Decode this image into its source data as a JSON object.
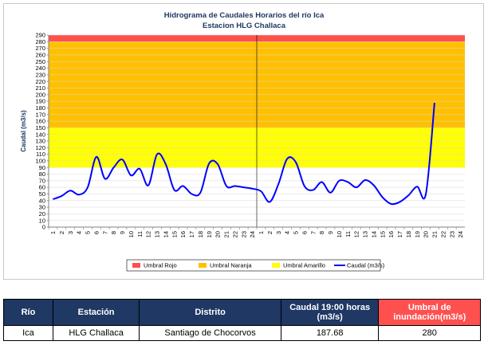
{
  "chart_data": {
    "type": "line",
    "title": "Hidrograma de Caudales Horarios del río Ica",
    "subtitle": "Estacion HLG Challaca",
    "ylabel": "Caudal  (m3/s)",
    "xlabel": "",
    "ylim": [
      0,
      290
    ],
    "yticks": [
      0,
      10,
      20,
      30,
      40,
      50,
      60,
      70,
      80,
      90,
      100,
      110,
      120,
      130,
      140,
      150,
      160,
      170,
      180,
      190,
      200,
      210,
      220,
      230,
      240,
      250,
      260,
      270,
      280,
      290
    ],
    "xtick_labels": [
      "1",
      "2",
      "3",
      "4",
      "5",
      "6",
      "7",
      "8",
      "9",
      "10",
      "11",
      "12",
      "13",
      "14",
      "15",
      "16",
      "17",
      "18",
      "19",
      "20",
      "21",
      "22",
      "23",
      "24",
      "1",
      "2",
      "3",
      "4",
      "5",
      "6",
      "7",
      "8",
      "9",
      "10",
      "11",
      "12",
      "13",
      "14",
      "15",
      "16",
      "17",
      "18",
      "19",
      "20",
      "21",
      "22",
      "23",
      "24"
    ],
    "day_divider_after_index": 23,
    "threshold_bands": [
      {
        "name": "Umbral Amarillo",
        "from": 90,
        "to": 150,
        "color": "#ffff00"
      },
      {
        "name": "Umbral Naranja",
        "from": 150,
        "to": 280,
        "color": "#ffc000"
      },
      {
        "name": "Umbral Rojo",
        "from": 280,
        "to": 290,
        "color": "#ff5050"
      }
    ],
    "series": [
      {
        "name": "Caudal (m3/s)",
        "color": "#0000ff",
        "points": [
          [
            0,
            42
          ],
          [
            1,
            47
          ],
          [
            2,
            55
          ],
          [
            3,
            49
          ],
          [
            4,
            60
          ],
          [
            5,
            106
          ],
          [
            6,
            73
          ],
          [
            7,
            90
          ],
          [
            8,
            102
          ],
          [
            9,
            78
          ],
          [
            10,
            88
          ],
          [
            11,
            63
          ],
          [
            12,
            110
          ],
          [
            13,
            95
          ],
          [
            14,
            56
          ],
          [
            15,
            62
          ],
          [
            16,
            50
          ],
          [
            17,
            52
          ],
          [
            18,
            96
          ],
          [
            19,
            95
          ],
          [
            20,
            62
          ],
          [
            21,
            62
          ],
          [
            22,
            60
          ],
          [
            23,
            58
          ],
          [
            24,
            54
          ],
          [
            25,
            38
          ],
          [
            26,
            65
          ],
          [
            27,
            103
          ],
          [
            28,
            98
          ],
          [
            29,
            62
          ],
          [
            30,
            56
          ],
          [
            31,
            68
          ],
          [
            32,
            52
          ],
          [
            33,
            70
          ],
          [
            34,
            68
          ],
          [
            35,
            60
          ],
          [
            36,
            71
          ],
          [
            37,
            63
          ],
          [
            38,
            45
          ],
          [
            39,
            35
          ],
          [
            40,
            38
          ],
          [
            41,
            48
          ],
          [
            42,
            61
          ],
          [
            43,
            50
          ],
          [
            44,
            187.68
          ]
        ]
      }
    ],
    "legend": {
      "position": "bottom",
      "items": [
        {
          "label": "Umbral Rojo",
          "color": "#ff5050",
          "kind": "box"
        },
        {
          "label": "Umbral Naranja",
          "color": "#ffc000",
          "kind": "box"
        },
        {
          "label": "Umbral Amarillo",
          "color": "#ffff00",
          "kind": "box"
        },
        {
          "label": "Caudal (m3/s)",
          "color": "#0000ff",
          "kind": "line"
        }
      ]
    }
  },
  "table": {
    "headers": {
      "rio": "Río",
      "estacion": "Estación",
      "distrito": "Distrito",
      "caudal": "Caudal 19:00 horas (m3/s)",
      "umbral": "Umbral de inundación(m3/s)"
    },
    "row": {
      "rio": "Ica",
      "estacion": "HLG Challaca",
      "distrito": "Santiago de Chocorvos",
      "caudal": "187.68",
      "umbral": "280"
    }
  }
}
